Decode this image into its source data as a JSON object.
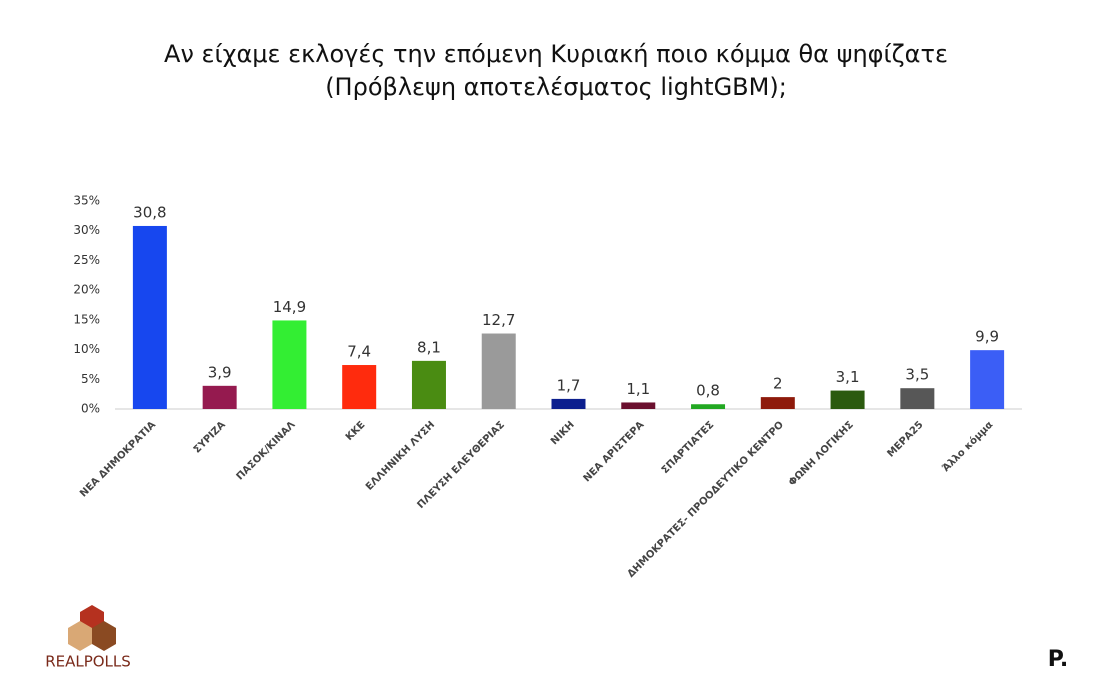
{
  "chart_data": {
    "type": "bar",
    "title": [
      "Αν είχαμε εκλογές την επόμενη Κυριακή ποιο κόμμα θα ψηφίζατε",
      "(Πρόβλεψη αποτελέσματος lightGBM);"
    ],
    "categories": [
      "ΝΕΑ ΔΗΜΟΚΡΑΤΙΑ",
      "ΣΥΡΙΖΑ",
      "ΠΑΣΟΚ/ΚΙΝΑΛ",
      "ΚΚΕ",
      "ΕΛΛΗΝΙΚΗ ΛΥΣΗ",
      "ΠΛΕΥΣΗ ΕΛΕΥΘΕΡΙΑΣ",
      "ΝΙΚΗ",
      "ΝΕΑ ΑΡΙΣΤΕΡΑ",
      "ΣΠΑΡΤΙΑΤΕΣ",
      "ΔΗΜΟΚΡΑΤΕΣ- ΠΡΟΟΔΕΥΤΙΚΟ ΚΕΝΤΡΟ",
      "ΦΩΝΗ ΛΟΓΙΚΗΣ",
      "ΜΕΡΑ25",
      "Άλλο κόμμα"
    ],
    "values": [
      30.8,
      3.9,
      14.9,
      7.4,
      8.1,
      12.7,
      1.7,
      1.1,
      0.8,
      2,
      3.1,
      3.5,
      9.9
    ],
    "value_labels": [
      "30,8",
      "3,9",
      "14,9",
      "7,4",
      "8,1",
      "12,7",
      "1,7",
      "1,1",
      "0,8",
      "2",
      "3,1",
      "3,5",
      "9,9"
    ],
    "colors": [
      "#1747ef",
      "#951a4f",
      "#33ee33",
      "#ff2b0d",
      "#4a8c12",
      "#9a9a9a",
      "#0c1f8e",
      "#6a0f2e",
      "#22a822",
      "#8e1a0b",
      "#2b5a0f",
      "#575757",
      "#3b5ef6"
    ],
    "ylim": [
      0,
      35
    ],
    "yticks": [
      {
        "value": 0,
        "label": "0%"
      },
      {
        "value": 5,
        "label": "5%"
      },
      {
        "value": 10,
        "label": "10%"
      },
      {
        "value": 15,
        "label": "15%"
      },
      {
        "value": 20,
        "label": "20%"
      },
      {
        "value": 25,
        "label": "25%"
      },
      {
        "value": 30,
        "label": "30%"
      },
      {
        "value": 35,
        "label": "35%"
      }
    ],
    "grid": false
  },
  "logos": {
    "left": "REALPOLLS",
    "right": "P."
  }
}
